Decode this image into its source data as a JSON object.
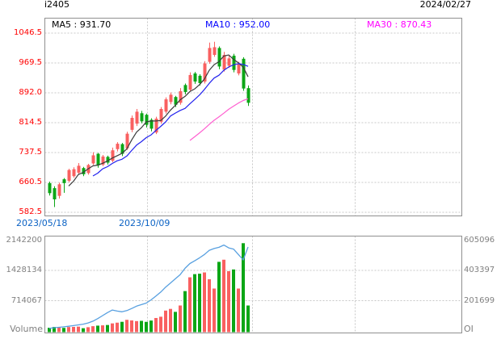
{
  "header": {
    "title": "i2405",
    "date": "2024/02/27"
  },
  "indicators": {
    "ma5_label": "MA5 : 931.70",
    "ma10_label": "MA10 : 952.00",
    "ma30_label": "MA30 : 870.43"
  },
  "volume_panel": {
    "title": "Volume",
    "oi_title": "OI"
  },
  "colors": {
    "up_candle": "#f96060",
    "down_candle": "#0ca616",
    "ma5_line": "#3a3a3a",
    "ma10_line": "#2222ee",
    "ma30_line": "#ff5fd0",
    "oi_line": "#58a0e0",
    "price_axis_text": "#ff0000",
    "date_axis_text": "#0b62c4",
    "gray_axis_text": "#808080",
    "ma10_text": "#0000ff",
    "ma30_text": "#ff00ff",
    "grid": "#c8c8c8",
    "border": "#909090"
  },
  "chart_data": {
    "type": "candlestick",
    "title": "i2405 K-line with MA5/MA10/MA30, Volume and Open Interest",
    "legend": [
      "MA5",
      "MA10",
      "MA30",
      "Volume",
      "OI"
    ],
    "price_axis": {
      "ticks": [
        1046.5,
        969.5,
        892.0,
        814.5,
        737.5,
        660.5,
        582.5
      ],
      "max": 1046.5,
      "min": 582.5
    },
    "volume_axis": {
      "ticks": [
        2142200,
        1428134,
        714067
      ],
      "min": 0
    },
    "oi_axis": {
      "ticks": [
        605096,
        403397,
        201699
      ],
      "min": 0
    },
    "x_labels": [
      "2023/05/18",
      "2023/10/09"
    ],
    "ma_periods": [
      5,
      10,
      30
    ],
    "series": {
      "ohlc": [
        [
          658,
          662,
          626,
          632
        ],
        [
          645,
          650,
          596,
          616
        ],
        [
          625,
          659,
          618,
          655
        ],
        [
          668,
          671,
          633,
          658
        ],
        [
          664,
          695,
          660,
          692
        ],
        [
          676,
          699,
          672,
          694
        ],
        [
          685,
          710,
          680,
          703
        ],
        [
          697,
          700,
          676,
          681
        ],
        [
          684,
          708,
          680,
          705
        ],
        [
          709,
          738,
          705,
          730
        ],
        [
          734,
          736,
          698,
          704
        ],
        [
          706,
          731,
          702,
          727
        ],
        [
          726,
          729,
          706,
          711
        ],
        [
          716,
          750,
          712,
          743
        ],
        [
          746,
          764,
          740,
          760
        ],
        [
          759,
          762,
          728,
          734
        ],
        [
          748,
          791,
          744,
          786
        ],
        [
          796,
          833,
          790,
          827
        ],
        [
          812,
          850,
          806,
          843
        ],
        [
          839,
          845,
          813,
          818
        ],
        [
          835,
          838,
          802,
          809
        ],
        [
          822,
          826,
          792,
          799
        ],
        [
          789,
          830,
          785,
          825
        ],
        [
          817,
          855,
          812,
          850
        ],
        [
          843,
          880,
          838,
          875
        ],
        [
          868,
          893,
          862,
          887
        ],
        [
          881,
          884,
          855,
          861
        ],
        [
          866,
          904,
          861,
          896
        ],
        [
          912,
          916,
          888,
          894
        ],
        [
          900,
          945,
          895,
          938
        ],
        [
          942,
          946,
          915,
          921
        ],
        [
          936,
          940,
          911,
          917
        ],
        [
          921,
          974,
          916,
          968
        ],
        [
          972,
          1022,
          967,
          1008
        ],
        [
          990,
          1024,
          985,
          1010
        ],
        [
          1008,
          1012,
          953,
          960
        ],
        [
          952,
          998,
          947,
          990
        ],
        [
          962,
          988,
          956,
          981
        ],
        [
          988,
          993,
          945,
          951
        ],
        [
          942,
          972,
          937,
          966
        ],
        [
          980,
          984,
          897,
          903
        ],
        [
          904,
          911,
          858,
          866
        ]
      ],
      "volume": [
        75000,
        95000,
        85000,
        72000,
        92000,
        96000,
        102000,
        64000,
        88000,
        112000,
        125000,
        132000,
        140000,
        178000,
        195000,
        215000,
        262000,
        248000,
        232000,
        238000,
        214000,
        245000,
        305000,
        335000,
        480000,
        520000,
        450000,
        600000,
        940000,
        1265000,
        1340000,
        1350000,
        1380000,
        1220000,
        1000000,
        1630000,
        1680000,
        1410000,
        1450000,
        1000000,
        2070000,
        600000
      ],
      "open_interest": [
        20000,
        24000,
        27000,
        30000,
        34000,
        38000,
        43000,
        48000,
        56000,
        68000,
        85000,
        105000,
        125000,
        142000,
        135000,
        130000,
        138000,
        152000,
        168000,
        178000,
        188000,
        210000,
        235000,
        262000,
        295000,
        322000,
        350000,
        378000,
        420000,
        452000,
        470000,
        490000,
        512000,
        540000,
        552000,
        560000,
        575000,
        556000,
        548000,
        512000,
        476000,
        562000
      ]
    }
  }
}
